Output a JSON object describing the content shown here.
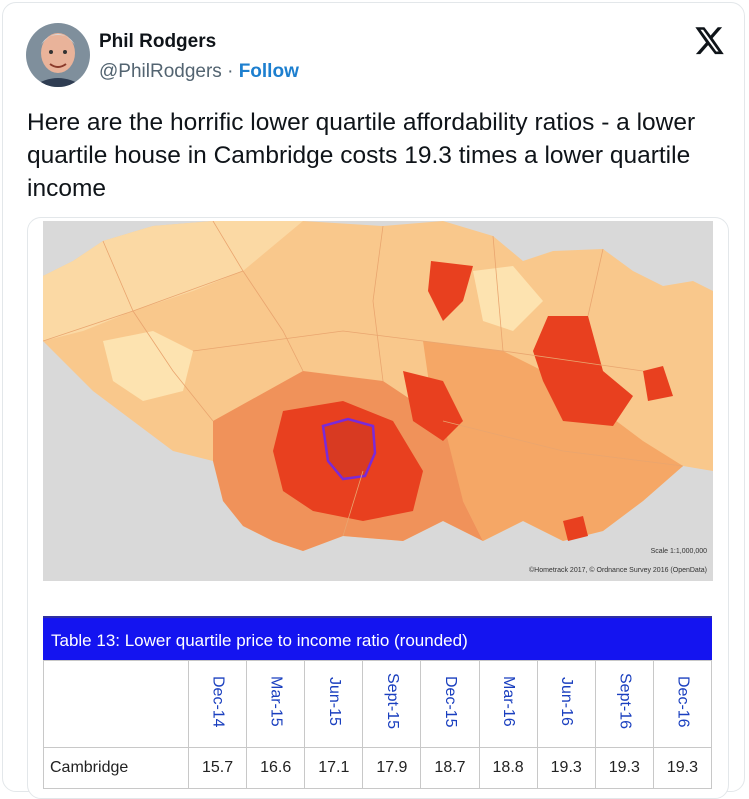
{
  "author": {
    "name": "Phil Rodgers",
    "handle": "@PhilRodgers",
    "separator": "·",
    "follow": "Follow"
  },
  "tweet": {
    "text": "Here are the horrific lower quartile affordability ratios - a lower quartile house in Cambridge costs 19.3 times a lower quartile income"
  },
  "map": {
    "scale": "Scale 1:1,000,000",
    "credit": "©Hometrack 2017, © Ordnance Survey 2016 (OpenData)"
  },
  "table": {
    "title": "Table 13: Lower quartile price to income ratio (rounded)",
    "columns": [
      "Dec-14",
      "Mar-15",
      "Jun-15",
      "Sept-15",
      "Dec-15",
      "Mar-16",
      "Jun-16",
      "Sept-16",
      "Dec-16"
    ],
    "rows": [
      [
        "Cambridge",
        15.7,
        16.6,
        17.1,
        17.9,
        18.7,
        18.8,
        19.3,
        19.3,
        19.3
      ]
    ]
  }
}
